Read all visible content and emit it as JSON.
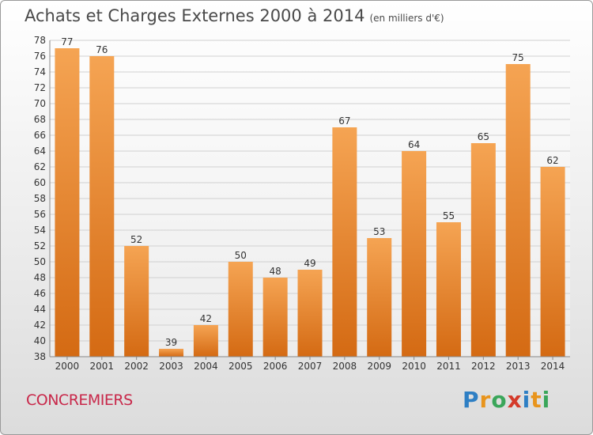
{
  "header": {
    "title": "Achats et Charges Externes 2000 à 2014",
    "subtitle": "(en milliers d'€)"
  },
  "footer": {
    "town": "CONCREMIERS",
    "logo_letters": [
      "P",
      "r",
      "o",
      "x",
      "i",
      "t",
      "i"
    ],
    "logo_colors": [
      "#2e7fc4",
      "#e8941c",
      "#3aa65a",
      "#d43a2a",
      "#2e7fc4",
      "#e8941c",
      "#3aa65a"
    ]
  },
  "colors": {
    "bar_light": "#f5a453",
    "bar_dark": "#d46a13",
    "grid": "#d0d0d0",
    "title": "#4a4a4a",
    "town": "#c8284a"
  },
  "chart_data": {
    "type": "bar",
    "title": "Achats et Charges Externes 2000 à 2014",
    "subtitle": "(en milliers d'€)",
    "categories": [
      "2000",
      "2001",
      "2002",
      "2003",
      "2004",
      "2005",
      "2006",
      "2007",
      "2008",
      "2009",
      "2010",
      "2011",
      "2012",
      "2013",
      "2014"
    ],
    "values": [
      77,
      76,
      52,
      39,
      42,
      50,
      48,
      49,
      67,
      53,
      64,
      55,
      65,
      75,
      62
    ],
    "ylim": [
      38,
      78
    ],
    "ytick_step": 2,
    "grid": true,
    "data_labels": true
  }
}
